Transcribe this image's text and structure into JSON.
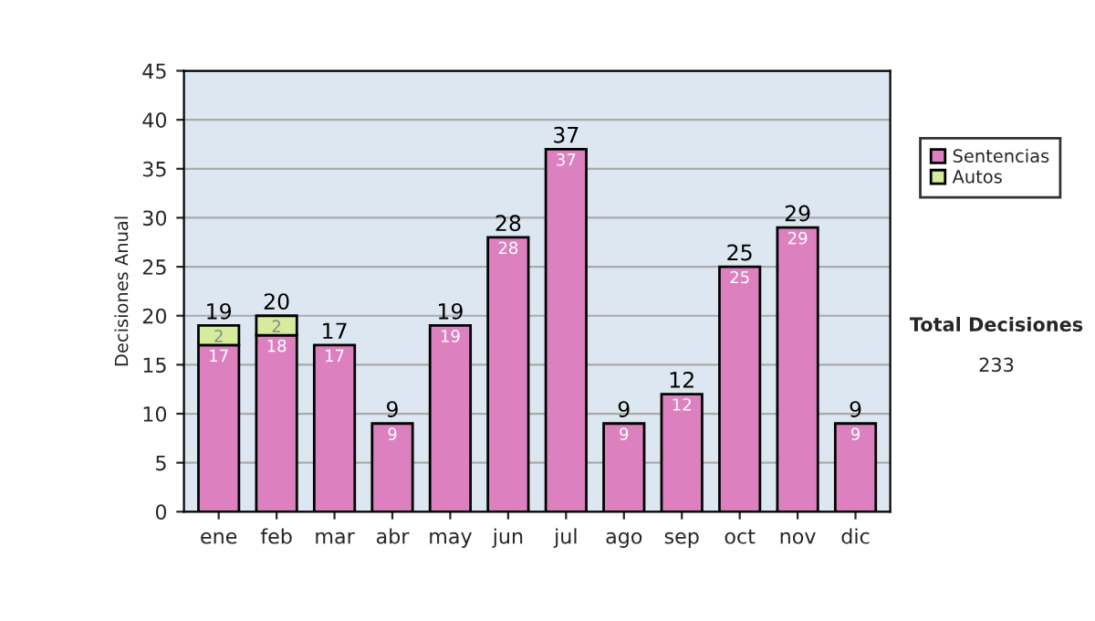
{
  "chart_data": {
    "type": "bar",
    "stacked": true,
    "ylabel": "Decisiones Anual",
    "categories": [
      "ene",
      "feb",
      "mar",
      "abr",
      "may",
      "jun",
      "jul",
      "ago",
      "sep",
      "oct",
      "nov",
      "dic"
    ],
    "series": [
      {
        "name": "Sentencias",
        "color": "#dd80c0",
        "values": [
          17,
          18,
          17,
          9,
          19,
          28,
          37,
          9,
          12,
          25,
          29,
          9
        ]
      },
      {
        "name": "Autos",
        "color": "#d4ec9c",
        "values": [
          2,
          2,
          null,
          null,
          null,
          null,
          null,
          null,
          null,
          null,
          null,
          null
        ]
      }
    ],
    "data_labels": true,
    "totals": [
      "19",
      "20",
      "17",
      "9",
      "19",
      "28",
      "37",
      "9",
      "12",
      "25",
      "29",
      "9"
    ],
    "ylim": [
      0,
      45
    ],
    "yticks": [
      0,
      5,
      10,
      15,
      20,
      25,
      30,
      35,
      40,
      45
    ],
    "grid": "y",
    "legend": "right",
    "annotations": [
      "Total Decisiones",
      "233"
    ]
  }
}
